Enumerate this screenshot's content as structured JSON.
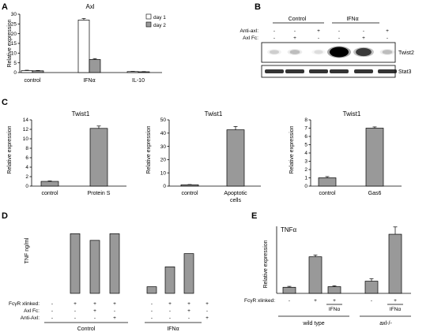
{
  "panels": {
    "A": {
      "label": "A"
    },
    "B": {
      "label": "B",
      "groups": [
        "Control",
        "IFNα"
      ],
      "row_labels": [
        "Anti-axl:",
        "Axl Fc:"
      ],
      "anti_axl": [
        "-",
        "-",
        "+",
        "-",
        "-",
        "+"
      ],
      "axl_fc": [
        "-",
        "+",
        "-",
        "-",
        "+",
        "-"
      ],
      "band_labels": [
        "Twist2",
        "Stat3"
      ],
      "twist2_intensity": [
        0.15,
        0.2,
        0.1,
        1.0,
        0.7,
        0.2
      ],
      "stat3_intensity": [
        0.85,
        0.85,
        0.85,
        0.85,
        0.85,
        0.85
      ]
    },
    "C": {
      "label": "C"
    },
    "D": {
      "label": "D",
      "row_labels": [
        "FcγR xlinked:",
        "Axl Fc:",
        "Anti-Axl:"
      ],
      "fcgr": [
        "-",
        "+",
        "+",
        "+",
        "-",
        "+",
        "+",
        "+"
      ],
      "axlfc": [
        "-",
        "-",
        "+",
        "-",
        "-",
        "-",
        "+",
        "-"
      ],
      "antiaxl": [
        "-",
        "-",
        "-",
        "+",
        "-",
        "-",
        "-",
        "+"
      ],
      "group_labels": [
        "Control",
        "IFNα"
      ]
    },
    "E": {
      "label": "E",
      "row_label": "FcγR xlinked:",
      "fcgr": [
        "-",
        "+",
        "+",
        "-",
        "+"
      ],
      "ifn_label": "IFNα",
      "group_labels": [
        "wild type",
        "axl-/-"
      ]
    }
  },
  "chart_data": [
    {
      "id": "A",
      "type": "bar",
      "title": "Axl",
      "ylabel": "Relative expression",
      "categories": [
        "control",
        "IFNα",
        "IL-10"
      ],
      "ylim": [
        0,
        30
      ],
      "yticks": [
        0,
        5,
        10,
        15,
        20,
        25,
        30
      ],
      "legend": "top-right",
      "series": [
        {
          "name": "day 1",
          "color": "#ffffff",
          "values": [
            1.0,
            27.0,
            0.5
          ],
          "errors": [
            0.2,
            0.8,
            0.1
          ]
        },
        {
          "name": "day 2",
          "color": "#999999",
          "values": [
            0.9,
            6.7,
            0.4
          ],
          "errors": [
            0.15,
            0.5,
            0.1
          ]
        }
      ]
    },
    {
      "id": "C1",
      "type": "bar",
      "title": "Twist1",
      "ylabel": "Relative expression",
      "categories": [
        "control",
        "Protein S"
      ],
      "ylim": [
        0,
        14
      ],
      "yticks": [
        0,
        2,
        4,
        6,
        8,
        10,
        12,
        14
      ],
      "values": [
        1.0,
        12.2
      ],
      "errors": [
        0.1,
        0.5
      ]
    },
    {
      "id": "C2",
      "type": "bar",
      "title": "Twist1",
      "ylabel": "Relative expression",
      "categories": [
        "control",
        "Apoptotic cells"
      ],
      "ylim": [
        0,
        50
      ],
      "yticks": [
        0,
        10,
        20,
        30,
        40,
        50
      ],
      "values": [
        1.0,
        42.5
      ],
      "errors": [
        0.2,
        2.5
      ]
    },
    {
      "id": "C3",
      "type": "bar",
      "title": "Twist1",
      "ylabel": "Relative expression",
      "categories": [
        "control",
        "Gas6"
      ],
      "ylim": [
        0,
        8
      ],
      "yticks": [
        0,
        1,
        2,
        3,
        4,
        5,
        6,
        7,
        8
      ],
      "values": [
        1.0,
        7.0
      ],
      "errors": [
        0.15,
        0.15
      ]
    },
    {
      "id": "D",
      "type": "bar",
      "ylabel": "TNF ng/ml",
      "ylim": [
        0,
        1.0
      ],
      "values": [
        0,
        0.9,
        0.8,
        0.9,
        0.1,
        0.4,
        0.6,
        0
      ]
    },
    {
      "id": "E",
      "type": "bar",
      "title": "TNFα",
      "ylabel": "Relative expression",
      "ylim": [
        0,
        11
      ],
      "values": [
        1.0,
        6.0,
        1.1,
        2.0,
        9.7
      ],
      "errors": [
        0.15,
        0.3,
        0.15,
        0.4,
        1.2
      ]
    }
  ]
}
